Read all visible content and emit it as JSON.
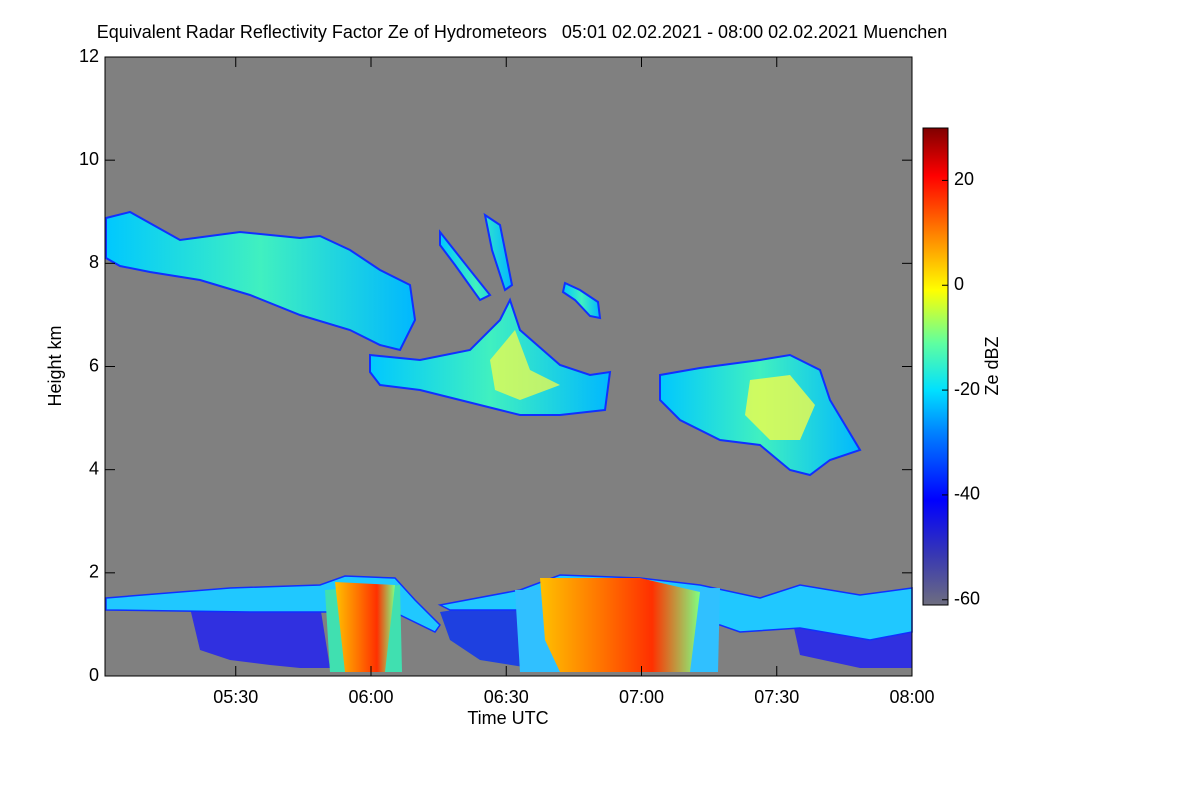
{
  "chart_data": {
    "type": "heatmap",
    "title": "Equivalent Radar Reflectivity Factor Ze of Hydrometeors   05:01 02.02.2021 - 08:00 02.02.2021 Muenchen",
    "x_label": "Time UTC",
    "y_label": "Height km",
    "colorbar_label": "Ze dBZ",
    "xlim": [
      301,
      480
    ],
    "xticks": [
      {
        "value": 330,
        "label": "05:30"
      },
      {
        "value": 360,
        "label": "06:00"
      },
      {
        "value": 390,
        "label": "06:30"
      },
      {
        "value": 420,
        "label": "07:00"
      },
      {
        "value": 450,
        "label": "07:30"
      },
      {
        "value": 480,
        "label": "08:00"
      }
    ],
    "ylim": [
      0,
      12
    ],
    "yticks": [
      0,
      2,
      4,
      6,
      8,
      10,
      12
    ],
    "clim": [
      -61,
      30
    ],
    "cticks": [
      -60,
      -40,
      -20,
      0,
      20
    ],
    "background": "#808080"
  }
}
